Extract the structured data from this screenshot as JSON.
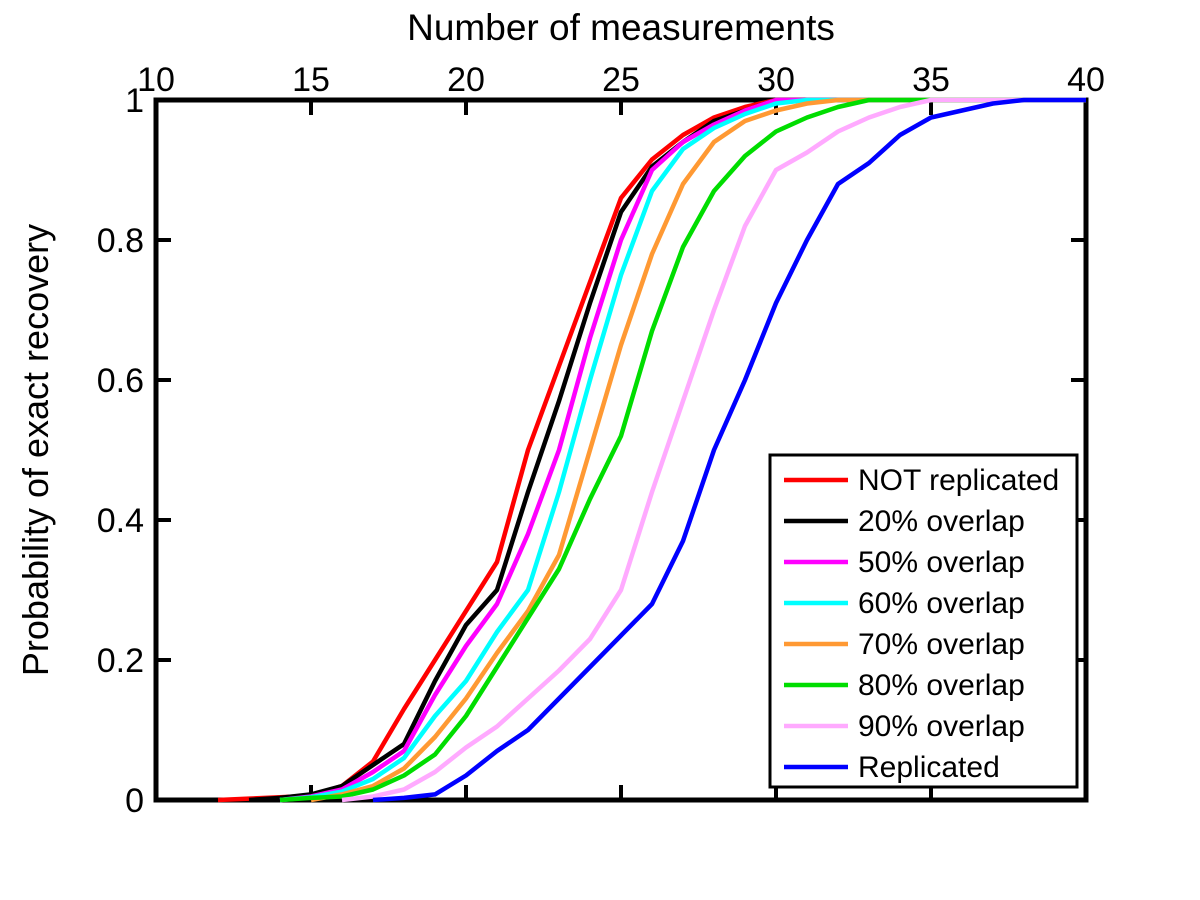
{
  "figure": {
    "background": "#ffffff",
    "axis_color": "#000000"
  },
  "chart_data": {
    "type": "line",
    "title": "Number of measurements",
    "xlabel": "Number of measurements",
    "xlabel_position": "top",
    "ylabel": "Probability of exact recovery",
    "xlim": [
      10,
      40
    ],
    "ylim": [
      0,
      1
    ],
    "x_ticks": [
      10,
      15,
      20,
      25,
      30,
      35,
      40
    ],
    "x_tick_labels": [
      "10",
      "15",
      "20",
      "25",
      "30",
      "35",
      "40"
    ],
    "y_ticks": [
      0,
      0.2,
      0.4,
      0.6,
      0.8,
      1
    ],
    "y_tick_labels": [
      "0",
      "0.2",
      "0.4",
      "0.6",
      "0.8",
      "1"
    ],
    "grid": false,
    "legend_position": "inside lower right",
    "x": [
      10,
      11,
      12,
      13,
      14,
      15,
      16,
      17,
      18,
      19,
      20,
      21,
      22,
      23,
      24,
      25,
      26,
      27,
      28,
      29,
      30,
      31,
      32,
      33,
      34,
      35,
      36,
      37,
      38,
      39,
      40
    ],
    "series": [
      {
        "name": "NOT replicated",
        "color": "#FF0000",
        "values": [
          null,
          null,
          0,
          0.002,
          0.004,
          0.006,
          0.02,
          0.055,
          0.13,
          0.2,
          0.27,
          0.34,
          0.5,
          0.62,
          0.74,
          0.86,
          0.915,
          0.95,
          0.975,
          0.99,
          1,
          1,
          1,
          1,
          1,
          1,
          1,
          1,
          1,
          1,
          1
        ]
      },
      {
        "name": "20% overlap",
        "color": "#000000",
        "values": [
          null,
          null,
          null,
          0,
          0.003,
          0.008,
          0.02,
          0.05,
          0.08,
          0.17,
          0.25,
          0.3,
          0.44,
          0.57,
          0.71,
          0.84,
          0.905,
          0.94,
          0.97,
          0.985,
          1,
          1,
          1,
          1,
          1,
          1,
          1,
          1,
          1,
          1,
          1
        ]
      },
      {
        "name": "50% overlap",
        "color": "#FF00FF",
        "values": [
          null,
          null,
          null,
          null,
          0,
          0.005,
          0.015,
          0.04,
          0.07,
          0.15,
          0.22,
          0.28,
          0.38,
          0.5,
          0.66,
          0.8,
          0.9,
          0.94,
          0.965,
          0.985,
          1,
          1,
          1,
          1,
          1,
          1,
          1,
          1,
          1,
          1,
          1
        ]
      },
      {
        "name": "60% overlap",
        "color": "#00FFFF",
        "values": [
          null,
          null,
          null,
          null,
          0,
          0.004,
          0.012,
          0.03,
          0.06,
          0.12,
          0.17,
          0.24,
          0.3,
          0.44,
          0.6,
          0.75,
          0.87,
          0.93,
          0.96,
          0.98,
          0.995,
          1,
          1,
          1,
          1,
          1,
          1,
          1,
          1,
          1,
          1
        ]
      },
      {
        "name": "70% overlap",
        "color": "#FF9933",
        "values": [
          null,
          null,
          null,
          null,
          null,
          0,
          0.008,
          0.02,
          0.045,
          0.09,
          0.145,
          0.21,
          0.27,
          0.35,
          0.5,
          0.65,
          0.78,
          0.88,
          0.94,
          0.97,
          0.985,
          0.995,
          1,
          1,
          1,
          1,
          1,
          1,
          1,
          1,
          1
        ]
      },
      {
        "name": "80% overlap",
        "color": "#00DD00",
        "values": [
          null,
          null,
          null,
          null,
          0,
          0.003,
          0.005,
          0.015,
          0.035,
          0.065,
          0.12,
          0.19,
          0.26,
          0.33,
          0.43,
          0.52,
          0.67,
          0.79,
          0.87,
          0.92,
          0.955,
          0.975,
          0.99,
          1,
          1,
          1,
          1,
          1,
          1,
          1,
          1
        ]
      },
      {
        "name": "90% overlap",
        "color": "#FFAAFF",
        "values": [
          null,
          null,
          null,
          null,
          null,
          null,
          0,
          0.005,
          0.015,
          0.04,
          0.075,
          0.105,
          0.145,
          0.185,
          0.23,
          0.3,
          0.44,
          0.57,
          0.7,
          0.82,
          0.9,
          0.925,
          0.955,
          0.975,
          0.99,
          1,
          1,
          1,
          1,
          1,
          1
        ]
      },
      {
        "name": "Replicated",
        "color": "#0000FF",
        "values": [
          null,
          null,
          null,
          null,
          null,
          null,
          null,
          0,
          0.003,
          0.008,
          0.035,
          0.07,
          0.1,
          0.145,
          0.19,
          0.235,
          0.28,
          0.37,
          0.5,
          0.6,
          0.71,
          0.8,
          0.88,
          0.91,
          0.95,
          0.975,
          0.985,
          0.995,
          1,
          1,
          1
        ]
      }
    ]
  }
}
